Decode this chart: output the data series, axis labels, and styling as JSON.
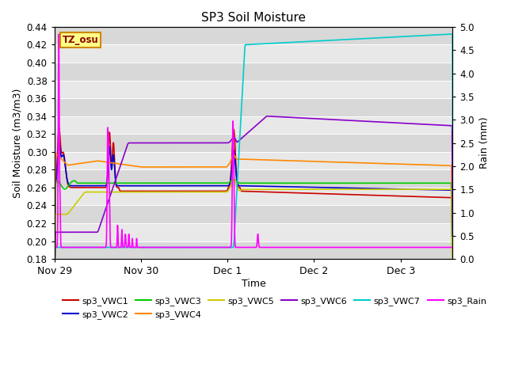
{
  "title": "SP3 Soil Moisture",
  "xlabel": "Time",
  "ylabel_left": "Soil Moisture (m3/m3)",
  "ylabel_right": "Rain (mm)",
  "ylim_left": [
    0.18,
    0.44
  ],
  "ylim_right": [
    0.0,
    5.0
  ],
  "yticks_left": [
    0.18,
    0.2,
    0.22,
    0.24,
    0.26,
    0.28,
    0.3,
    0.32,
    0.34,
    0.36,
    0.38,
    0.4,
    0.42,
    0.44
  ],
  "yticks_right": [
    0.0,
    0.5,
    1.0,
    1.5,
    2.0,
    2.5,
    3.0,
    3.5,
    4.0,
    4.5,
    5.0
  ],
  "xtick_labels": [
    "Nov 29",
    "Nov 30",
    "Dec 1",
    "Dec 2",
    "Dec 3"
  ],
  "xtick_positions": [
    0,
    1,
    2,
    3,
    4
  ],
  "xlim": [
    0,
    4.6
  ],
  "annotation_text": "TZ_osu",
  "annotation_color": "#8B0000",
  "annotation_bg": "#ffff88",
  "annotation_edge": "#cc8800",
  "plot_bg_color": "#e8e8e8",
  "grid_color": "#ffffff",
  "legend_items": [
    {
      "label": "sp3_VWC1",
      "color": "#cc0000",
      "lw": 1.2
    },
    {
      "label": "sp3_VWC2",
      "color": "#0000cc",
      "lw": 1.2
    },
    {
      "label": "sp3_VWC3",
      "color": "#00cc00",
      "lw": 1.2
    },
    {
      "label": "sp3_VWC4",
      "color": "#ff8800",
      "lw": 1.2
    },
    {
      "label": "sp3_VWC5",
      "color": "#cccc00",
      "lw": 1.2
    },
    {
      "label": "sp3_VWC6",
      "color": "#8800cc",
      "lw": 1.2
    },
    {
      "label": "sp3_VWC7",
      "color": "#00cccc",
      "lw": 1.2
    },
    {
      "label": "sp3_Rain",
      "color": "#ff00ff",
      "lw": 1.2
    }
  ]
}
